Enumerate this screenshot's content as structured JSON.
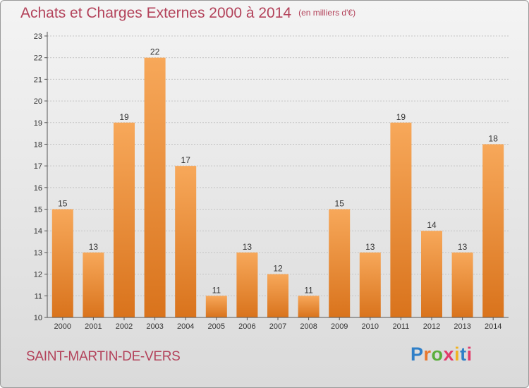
{
  "title": "Achats et Charges Externes 2000 à 2014",
  "unit": "(en milliers d'€)",
  "commune": "SAINT-MARTIN-DE-VERS",
  "logo": {
    "text": "Proxiti",
    "colors": [
      "#2f7fc8",
      "#e8772c",
      "#5aae3c",
      "#e23b6b",
      "#f0b323",
      "#2f7fc8",
      "#e23b6b"
    ]
  },
  "chart_data": {
    "type": "bar",
    "categories": [
      "2000",
      "2001",
      "2002",
      "2003",
      "2004",
      "2005",
      "2006",
      "2007",
      "2008",
      "2009",
      "2010",
      "2011",
      "2012",
      "2013",
      "2014"
    ],
    "values": [
      15,
      13,
      19,
      22,
      17,
      11,
      13,
      12,
      11,
      15,
      13,
      19,
      14,
      13,
      18
    ],
    "ylim": [
      10,
      23
    ],
    "yticks": [
      10,
      11,
      12,
      13,
      14,
      15,
      16,
      17,
      18,
      19,
      20,
      21,
      22,
      23
    ],
    "ytick_labels": [
      "10",
      "11",
      "12",
      "13",
      "14",
      "15",
      "16",
      "17",
      "18",
      "19",
      "20",
      "21",
      "22",
      "23"
    ],
    "grid": true,
    "bar_color_top": "#f7a85a",
    "bar_color_bottom": "#d9731c"
  }
}
